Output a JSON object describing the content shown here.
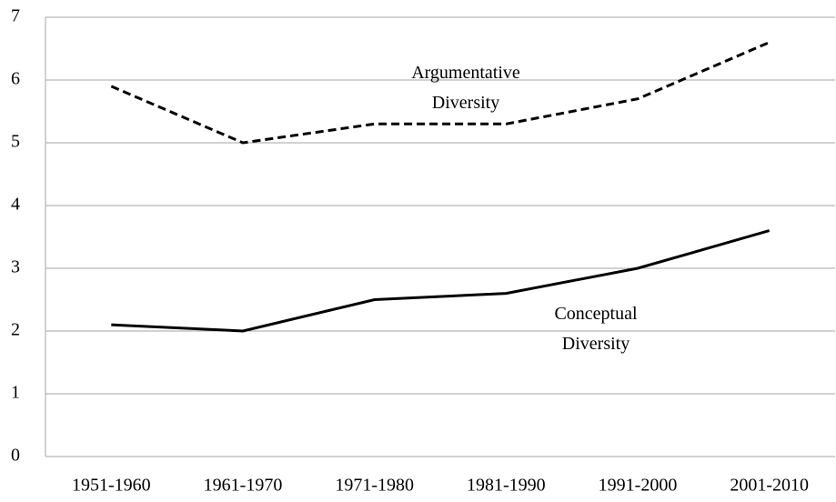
{
  "chart_data": {
    "type": "line",
    "categories": [
      "1951-1960",
      "1961-1970",
      "1971-1980",
      "1981-1990",
      "1991-2000",
      "2001-2010"
    ],
    "series": [
      {
        "name": "Argumentative Diversity",
        "color": "#000000",
        "style": "dashed",
        "values": [
          5.9,
          5.0,
          5.3,
          5.3,
          5.7,
          6.6
        ]
      },
      {
        "name": "Conceptual Diversity",
        "color": "#000000",
        "style": "solid",
        "values": [
          2.1,
          2.0,
          2.5,
          2.6,
          3.0,
          3.6
        ]
      }
    ],
    "ylim": [
      0,
      7
    ],
    "yticks": [
      0,
      1,
      2,
      3,
      4,
      5,
      6,
      7
    ],
    "grid": true
  }
}
